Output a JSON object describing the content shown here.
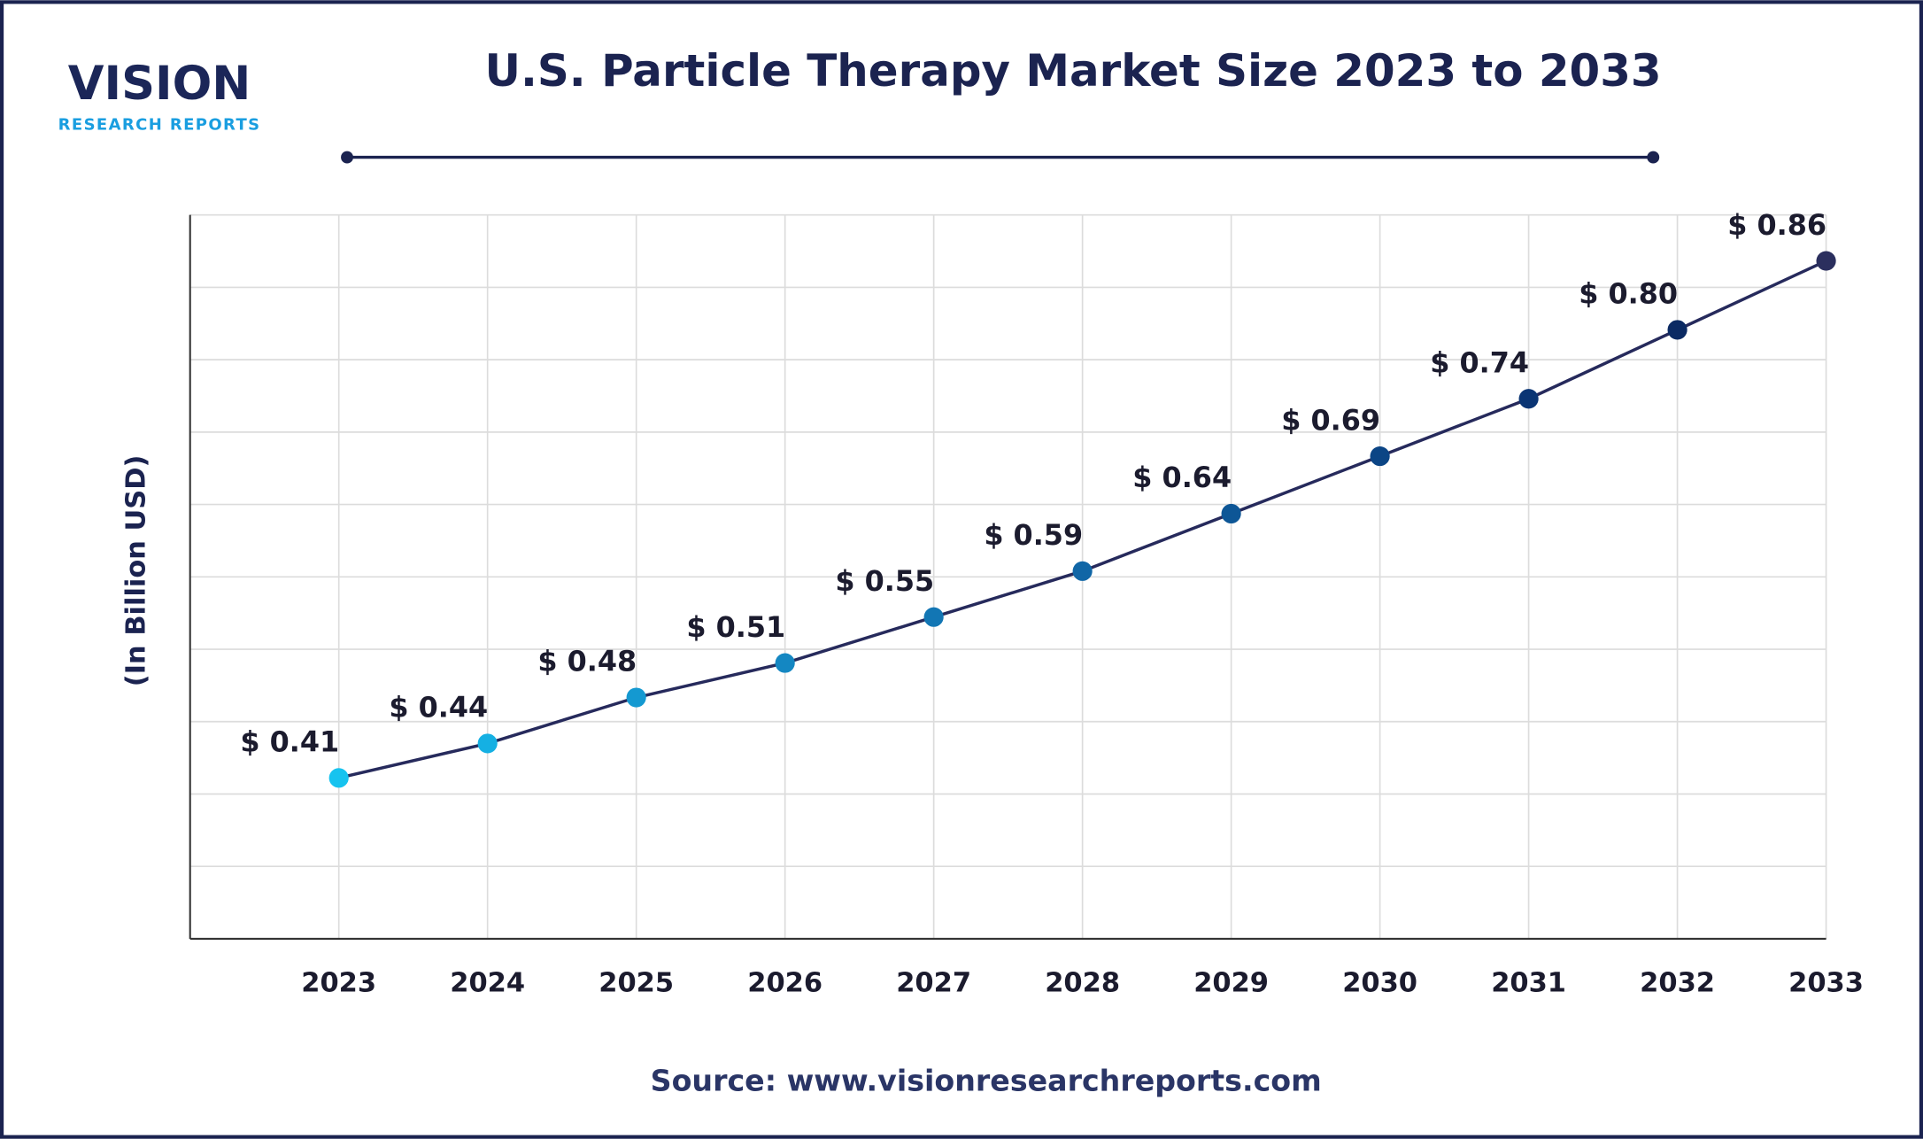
{
  "logo": {
    "name": "VISION",
    "tagline": "RESEARCH REPORTS"
  },
  "chart_data": {
    "type": "line",
    "title": "U.S. Particle Therapy Market Size 2023 to 2033",
    "y_label": "(In Billion USD)",
    "categories": [
      "2023",
      "2024",
      "2025",
      "2026",
      "2027",
      "2028",
      "2029",
      "2030",
      "2031",
      "2032",
      "2033"
    ],
    "values": [
      0.41,
      0.44,
      0.48,
      0.51,
      0.55,
      0.59,
      0.64,
      0.69,
      0.74,
      0.8,
      0.86
    ],
    "value_labels": [
      "$ 0.41",
      "$ 0.44",
      "$ 0.48",
      "$ 0.51",
      "$ 0.55",
      "$ 0.59",
      "$ 0.64",
      "$ 0.69",
      "$ 0.74",
      "$ 0.80",
      "$ 0.86"
    ],
    "color": "#262a5c",
    "point_colors": [
      "#16c3ef",
      "#15b0e3",
      "#1499d1",
      "#1487c2",
      "#1276b4",
      "#1066a6",
      "#0d5696",
      "#0b4585",
      "#0a3574",
      "#0b2a63",
      "#2b2f5e"
    ],
    "ylim": [
      0.27,
      0.9
    ],
    "grid": true
  },
  "source": "Source: www.visionresearchreports.com"
}
